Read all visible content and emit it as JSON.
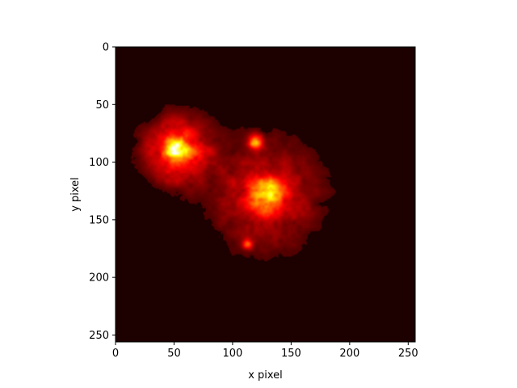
{
  "chart_data": {
    "type": "heatmap",
    "colormap": "hot",
    "xlabel": "x pixel",
    "ylabel": "y pixel",
    "xlim": [
      0,
      256
    ],
    "ylim": [
      256,
      0
    ],
    "y_axis_inverted": true,
    "grid": false,
    "x_ticks": [
      {
        "value": 0,
        "label": "0"
      },
      {
        "value": 50,
        "label": "50"
      },
      {
        "value": 100,
        "label": "100"
      },
      {
        "value": 150,
        "label": "150"
      },
      {
        "value": 200,
        "label": "200"
      },
      {
        "value": 250,
        "label": "250"
      }
    ],
    "y_ticks": [
      {
        "value": 0,
        "label": "0"
      },
      {
        "value": 50,
        "label": "50"
      },
      {
        "value": 100,
        "label": "100"
      },
      {
        "value": 150,
        "label": "150"
      },
      {
        "value": 200,
        "label": "200"
      },
      {
        "value": 250,
        "label": "250"
      }
    ],
    "sources": [
      {
        "x": 52,
        "y": 89,
        "peak_intensity": 1.0,
        "core_width": 6,
        "halo_width": 20
      },
      {
        "x": 128,
        "y": 128,
        "peak_intensity": 0.62,
        "core_width": 10,
        "halo_width": 33
      },
      {
        "x": 119,
        "y": 82,
        "peak_intensity": 0.5,
        "core_width": 4,
        "halo_width": 5
      },
      {
        "x": 113,
        "y": 171,
        "peak_intensity": 0.38,
        "core_width": 3,
        "halo_width": 3
      }
    ]
  }
}
